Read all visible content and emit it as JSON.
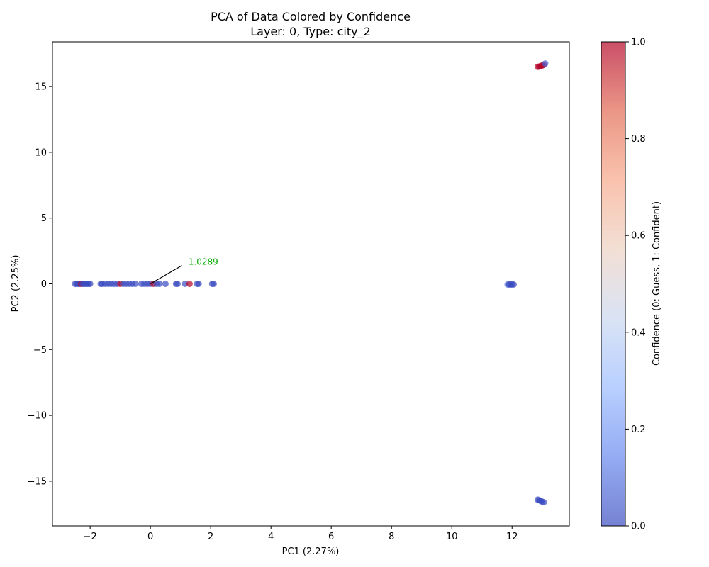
{
  "chart_data": {
    "type": "scatter",
    "title": "PCA of Data Colored by Confidence",
    "subtitle": "Layer: 0, Type: city_2",
    "xlabel": "PC1 (2.27%)",
    "ylabel": "PC2 (2.25%)",
    "xlim": [
      -3.25,
      13.9
    ],
    "ylim": [
      -18.4,
      18.4
    ],
    "xticks": [
      -2,
      0,
      2,
      4,
      6,
      8,
      10,
      12
    ],
    "xtick_labels": [
      "−2",
      "0",
      "2",
      "4",
      "6",
      "8",
      "10",
      "12"
    ],
    "yticks": [
      -15,
      -10,
      -5,
      0,
      5,
      10,
      15
    ],
    "ytick_labels": [
      "−15",
      "−10",
      "−5",
      "0",
      "5",
      "10",
      "15"
    ],
    "grid": false,
    "colormap": "coolwarm",
    "colorbar": {
      "label": "Confidence (0: Guess, 1: Confident)",
      "range": [
        0,
        1
      ],
      "ticks": [
        0.0,
        0.2,
        0.4,
        0.6,
        0.8,
        1.0
      ],
      "tick_labels": [
        "0.0",
        "0.2",
        "0.4",
        "0.6",
        "0.8",
        "1.0"
      ],
      "colors": [
        "#3b4cc0",
        "#6788ee",
        "#9abbff",
        "#c9d7f0",
        "#edd1c2",
        "#f7a889",
        "#e26952",
        "#b40426"
      ]
    },
    "points": [
      {
        "x": -2.5,
        "y": 0,
        "c": 0
      },
      {
        "x": -2.45,
        "y": 0,
        "c": 0
      },
      {
        "x": -2.4,
        "y": 0,
        "c": 0
      },
      {
        "x": -2.35,
        "y": 0,
        "c": 0
      },
      {
        "x": -2.3,
        "y": 0,
        "c": 1
      },
      {
        "x": -2.25,
        "y": 0,
        "c": 0
      },
      {
        "x": -2.2,
        "y": 0,
        "c": 0
      },
      {
        "x": -2.15,
        "y": 0,
        "c": 0
      },
      {
        "x": -2.1,
        "y": 0,
        "c": 0
      },
      {
        "x": -2.05,
        "y": 0,
        "c": 0
      },
      {
        "x": -2.0,
        "y": 0,
        "c": 0
      },
      {
        "x": -1.65,
        "y": 0,
        "c": 0
      },
      {
        "x": -1.6,
        "y": 0,
        "c": 0
      },
      {
        "x": -1.5,
        "y": 0,
        "c": 0
      },
      {
        "x": -1.4,
        "y": 0,
        "c": 0
      },
      {
        "x": -1.3,
        "y": 0,
        "c": 0
      },
      {
        "x": -1.2,
        "y": 0,
        "c": 0
      },
      {
        "x": -1.1,
        "y": 0,
        "c": 0
      },
      {
        "x": -1.0,
        "y": 0,
        "c": 1
      },
      {
        "x": -0.9,
        "y": 0,
        "c": 0
      },
      {
        "x": -0.8,
        "y": 0,
        "c": 0
      },
      {
        "x": -0.7,
        "y": 0,
        "c": 0
      },
      {
        "x": -0.6,
        "y": 0,
        "c": 0
      },
      {
        "x": -0.5,
        "y": 0,
        "c": 0
      },
      {
        "x": -0.3,
        "y": 0,
        "c": 0
      },
      {
        "x": -0.2,
        "y": 0,
        "c": 0
      },
      {
        "x": -0.1,
        "y": 0,
        "c": 0
      },
      {
        "x": 0.0,
        "y": 0,
        "c": 0
      },
      {
        "x": 0.1,
        "y": 0,
        "c": 1
      },
      {
        "x": 0.2,
        "y": 0,
        "c": 0
      },
      {
        "x": 0.3,
        "y": 0,
        "c": 0
      },
      {
        "x": 0.5,
        "y": 0,
        "c": 0
      },
      {
        "x": 0.85,
        "y": 0,
        "c": 0
      },
      {
        "x": 0.9,
        "y": 0,
        "c": 0
      },
      {
        "x": 1.15,
        "y": 0,
        "c": 0
      },
      {
        "x": 1.3,
        "y": 0,
        "c": 1
      },
      {
        "x": 1.55,
        "y": 0,
        "c": 0
      },
      {
        "x": 1.6,
        "y": 0,
        "c": 0
      },
      {
        "x": 2.05,
        "y": 0,
        "c": 0
      },
      {
        "x": 2.1,
        "y": 0,
        "c": 0
      },
      {
        "x": 11.85,
        "y": -0.05,
        "c": 0.1
      },
      {
        "x": 11.9,
        "y": -0.05,
        "c": 0
      },
      {
        "x": 11.95,
        "y": -0.05,
        "c": 0
      },
      {
        "x": 12.0,
        "y": -0.05,
        "c": 0
      },
      {
        "x": 12.05,
        "y": -0.05,
        "c": 0
      },
      {
        "x": 12.85,
        "y": 16.5,
        "c": 1
      },
      {
        "x": 12.9,
        "y": 16.52,
        "c": 1
      },
      {
        "x": 12.95,
        "y": 16.55,
        "c": 1
      },
      {
        "x": 13.0,
        "y": 16.6,
        "c": 1
      },
      {
        "x": 13.05,
        "y": 16.65,
        "c": 1
      },
      {
        "x": 13.1,
        "y": 16.75,
        "c": 0.05
      },
      {
        "x": 12.85,
        "y": -16.4,
        "c": 0
      },
      {
        "x": 12.9,
        "y": -16.45,
        "c": 0
      },
      {
        "x": 12.95,
        "y": -16.5,
        "c": 0
      },
      {
        "x": 13.0,
        "y": -16.55,
        "c": 0
      },
      {
        "x": 13.05,
        "y": -16.6,
        "c": 0
      }
    ],
    "annotation": {
      "text": "1.0289",
      "point": [
        0.0,
        0.0
      ],
      "text_at": [
        1.05,
        1.4
      ],
      "color": "#00aa00"
    }
  }
}
